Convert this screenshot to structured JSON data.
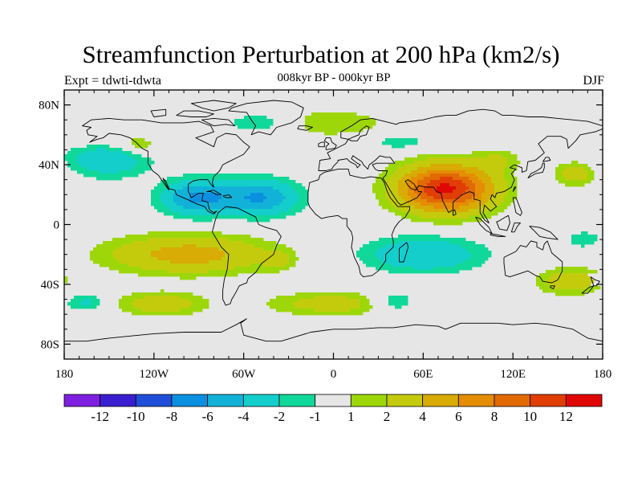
{
  "title": "Streamfunction Perturbation at 200 hPa (km2/s)",
  "subtitle": "008kyr BP - 000kyr BP",
  "left_label": "Expt = tdwti-tdwta",
  "right_label": "DJF",
  "map": {
    "projection": "cylindrical-equidistant",
    "lon_range": [
      -180,
      180
    ],
    "lat_range": [
      -90,
      90
    ],
    "lon_ticks": [
      {
        "lon": -180,
        "label": "180"
      },
      {
        "lon": -120,
        "label": "120W"
      },
      {
        "lon": -60,
        "label": "60W"
      },
      {
        "lon": 0,
        "label": "0"
      },
      {
        "lon": 60,
        "label": "60E"
      },
      {
        "lon": 120,
        "label": "120E"
      },
      {
        "lon": 180,
        "label": "180"
      }
    ],
    "lat_ticks": [
      {
        "lat": 80,
        "label": "80N"
      },
      {
        "lat": 40,
        "label": "40N"
      },
      {
        "lat": 0,
        "label": "0"
      },
      {
        "lat": -40,
        "label": "40S"
      },
      {
        "lat": -80,
        "label": "80S"
      }
    ],
    "background_color": "#e6e6e6",
    "coastline_color": "#000000",
    "anomaly_centers": [
      {
        "lon": 75,
        "lat": 24,
        "value": 12.5,
        "rx": 32,
        "ry": 16
      },
      {
        "lon": 162,
        "lat": 34,
        "value": 3.2,
        "rx": 14,
        "ry": 8
      },
      {
        "lon": -97,
        "lat": -20,
        "value": 5.0,
        "rx": 55,
        "ry": 13
      },
      {
        "lon": -37,
        "lat": -24,
        "value": 2.3,
        "rx": 10,
        "ry": 6
      },
      {
        "lon": -115,
        "lat": -53,
        "value": 3.3,
        "rx": 30,
        "ry": 8
      },
      {
        "lon": 0,
        "lat": -53,
        "value": 3.0,
        "rx": 45,
        "ry": 8
      },
      {
        "lon": 158,
        "lat": -38,
        "value": 3.4,
        "rx": 22,
        "ry": 9
      },
      {
        "lon": -10,
        "lat": 68,
        "value": 2.3,
        "rx": 45,
        "ry": 9
      },
      {
        "lon": -130,
        "lat": 52,
        "value": 2.0,
        "rx": 15,
        "ry": 7
      },
      {
        "lon": 110,
        "lat": 43,
        "value": 2.0,
        "rx": 15,
        "ry": 7
      },
      {
        "lon": -150,
        "lat": 55,
        "value": 1.7,
        "rx": 25,
        "ry": 8
      },
      {
        "lon": -90,
        "lat": 18,
        "value": -6.5,
        "rx": 25,
        "ry": 12
      },
      {
        "lon": -48,
        "lat": 18,
        "value": -6.0,
        "rx": 25,
        "ry": 12
      },
      {
        "lon": -150,
        "lat": 45,
        "value": -4.0,
        "rx": 28,
        "ry": 13
      },
      {
        "lon": -45,
        "lat": 68,
        "value": -2.5,
        "rx": 30,
        "ry": 8
      },
      {
        "lon": 60,
        "lat": -20,
        "value": -4.0,
        "rx": 40,
        "ry": 12
      },
      {
        "lon": 40,
        "lat": -52,
        "value": -2.5,
        "rx": 18,
        "ry": 8
      },
      {
        "lon": -165,
        "lat": -52,
        "value": -2.3,
        "rx": 15,
        "ry": 6
      },
      {
        "lon": 168,
        "lat": -10,
        "value": -2.0,
        "rx": 12,
        "ry": 6
      },
      {
        "lon": 45,
        "lat": 55,
        "value": -1.5,
        "rx": 25,
        "ry": 6
      }
    ]
  },
  "colorbar": {
    "levels": [
      -14,
      -12,
      -10,
      -8,
      -6,
      -4,
      -2,
      -1,
      1,
      2,
      4,
      6,
      8,
      10,
      12,
      14
    ],
    "colors": [
      "#7f1fe0",
      "#3a1fd0",
      "#1f4fd8",
      "#0b8fe0",
      "#12b2d8",
      "#13cecb",
      "#10d89a",
      "#e6e6e6",
      "#9dd70a",
      "#c4cb0d",
      "#d8ab05",
      "#e48d05",
      "#e16a05",
      "#e03e05",
      "#e00707"
    ],
    "labels": [
      "-12",
      "-10",
      "-8",
      "-6",
      "-4",
      "-2",
      "-1",
      "1",
      "2",
      "4",
      "6",
      "8",
      "10",
      "12"
    ]
  }
}
